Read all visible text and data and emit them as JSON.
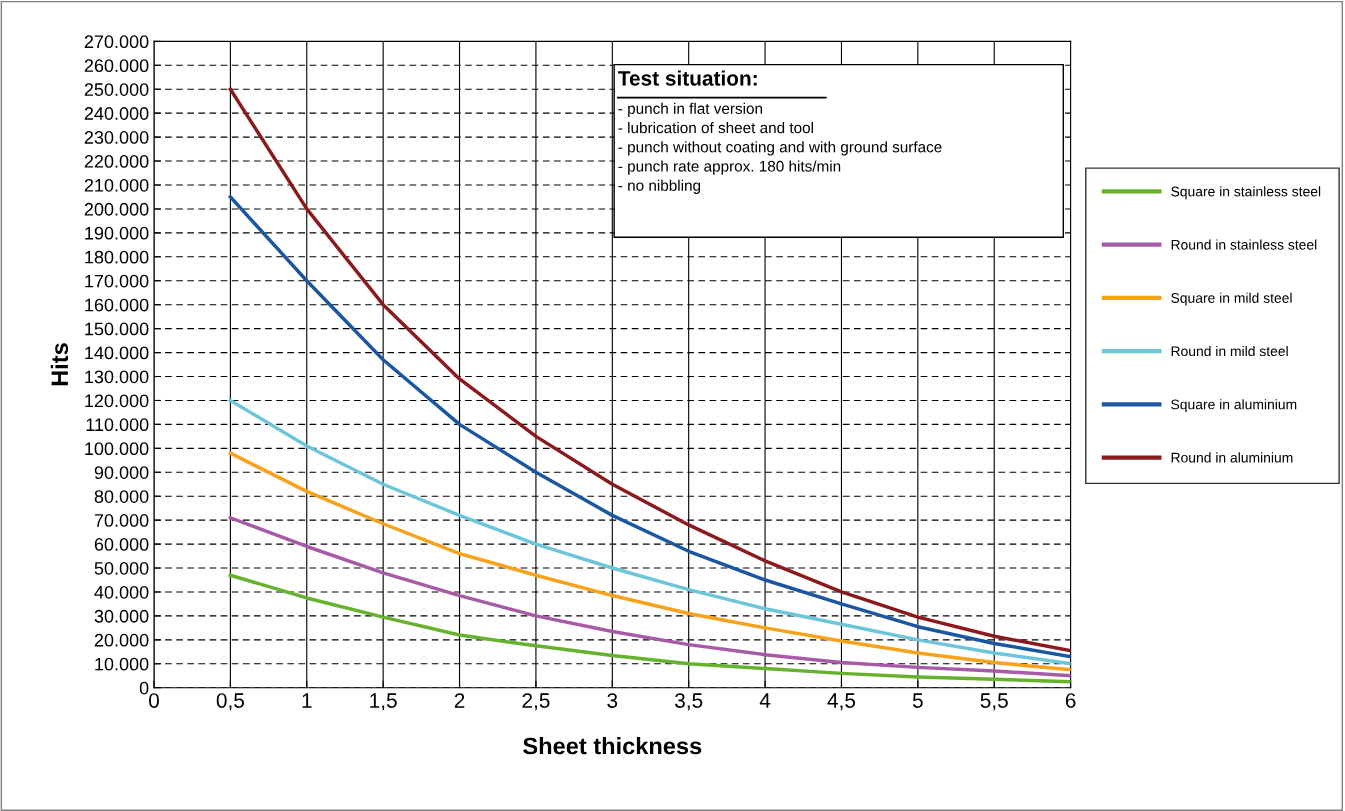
{
  "chart_data": {
    "type": "line",
    "xlabel": "Sheet thickness",
    "ylabel": "Hits",
    "x": [
      0.5,
      1,
      1.5,
      2,
      2.5,
      3,
      3.5,
      4,
      4.5,
      5,
      5.5,
      6
    ],
    "series": [
      {
        "name": "Square in stainless steel",
        "color": "#66b22e",
        "values": [
          47000,
          37500,
          29500,
          22000,
          17500,
          13500,
          10000,
          8000,
          6000,
          4500,
          3500,
          2500
        ]
      },
      {
        "name": "Round in stainless steel",
        "color": "#a75ba6",
        "values": [
          71000,
          59000,
          48000,
          38500,
          30000,
          23500,
          18000,
          13800,
          10500,
          8500,
          7000,
          5000
        ]
      },
      {
        "name": "Square in mild steel",
        "color": "#f7a21b",
        "values": [
          98000,
          82000,
          68500,
          56000,
          47000,
          38500,
          31000,
          25000,
          19500,
          14500,
          10500,
          7500
        ]
      },
      {
        "name": "Round in mild steel",
        "color": "#6cc5d8",
        "values": [
          120000,
          101000,
          85000,
          72000,
          60000,
          50000,
          41000,
          33000,
          26500,
          20000,
          14500,
          10000
        ]
      },
      {
        "name": "Square in aluminium",
        "color": "#1b57a0",
        "values": [
          205000,
          170000,
          137000,
          110000,
          90000,
          72000,
          57000,
          45000,
          35000,
          25500,
          18500,
          13000
        ]
      },
      {
        "name": "Round in aluminium",
        "color": "#8a1a1d",
        "values": [
          250000,
          200000,
          160000,
          129000,
          105000,
          85000,
          68000,
          53000,
          40000,
          29500,
          21500,
          15500
        ]
      }
    ],
    "annotations": [
      "Test situation:",
      "- punch in flat version\n- lubrication of sheet and tool\n- punch without coating and with ground surface\n- punch rate approx. 180 hits/min\n- no nibbling"
    ],
    "xlim": [
      0,
      6
    ],
    "xticks": [
      0,
      {
        "value": 0.5,
        "label": "0,5"
      },
      1,
      {
        "value": 1.5,
        "label": "1,5"
      },
      2,
      {
        "value": 2.5,
        "label": "2,5"
      },
      3,
      {
        "value": 3.5,
        "label": "3,5"
      },
      4,
      {
        "value": 4.5,
        "label": "4,5"
      },
      5,
      {
        "value": 5.5,
        "label": "5,5"
      },
      6
    ],
    "ylim": [
      0,
      270000
    ],
    "yticks": [
      0,
      {
        "value": 10000,
        "label": "10.000"
      },
      {
        "value": 20000,
        "label": "20.000"
      },
      {
        "value": 30000,
        "label": "30.000"
      },
      {
        "value": 40000,
        "label": "40.000"
      },
      {
        "value": 50000,
        "label": "50.000"
      },
      {
        "value": 60000,
        "label": "60.000"
      },
      {
        "value": 70000,
        "label": "70.000"
      },
      {
        "value": 80000,
        "label": "80.000"
      },
      {
        "value": 90000,
        "label": "90.000"
      },
      {
        "value": 100000,
        "label": "100.000"
      },
      {
        "value": 110000,
        "label": "110.000"
      },
      {
        "value": 120000,
        "label": "120.000"
      },
      {
        "value": 130000,
        "label": "130.000"
      },
      {
        "value": 140000,
        "label": "140.000"
      },
      {
        "value": 150000,
        "label": "150.000"
      },
      {
        "value": 160000,
        "label": "160.000"
      },
      {
        "value": 170000,
        "label": "170.000"
      },
      {
        "value": 180000,
        "label": "180.000"
      },
      {
        "value": 190000,
        "label": "190.000"
      },
      {
        "value": 200000,
        "label": "200.000"
      },
      {
        "value": 210000,
        "label": "210.000"
      },
      {
        "value": 220000,
        "label": "220.000"
      },
      {
        "value": 230000,
        "label": "230.000"
      },
      {
        "value": 240000,
        "label": "240.000"
      },
      {
        "value": 250000,
        "label": "250.000"
      },
      {
        "value": 260000,
        "label": "260.000"
      },
      {
        "value": 270000,
        "label": "270.000"
      }
    ],
    "grid": true,
    "legend": "right",
    "marker": "none",
    "line_style": "solid"
  }
}
